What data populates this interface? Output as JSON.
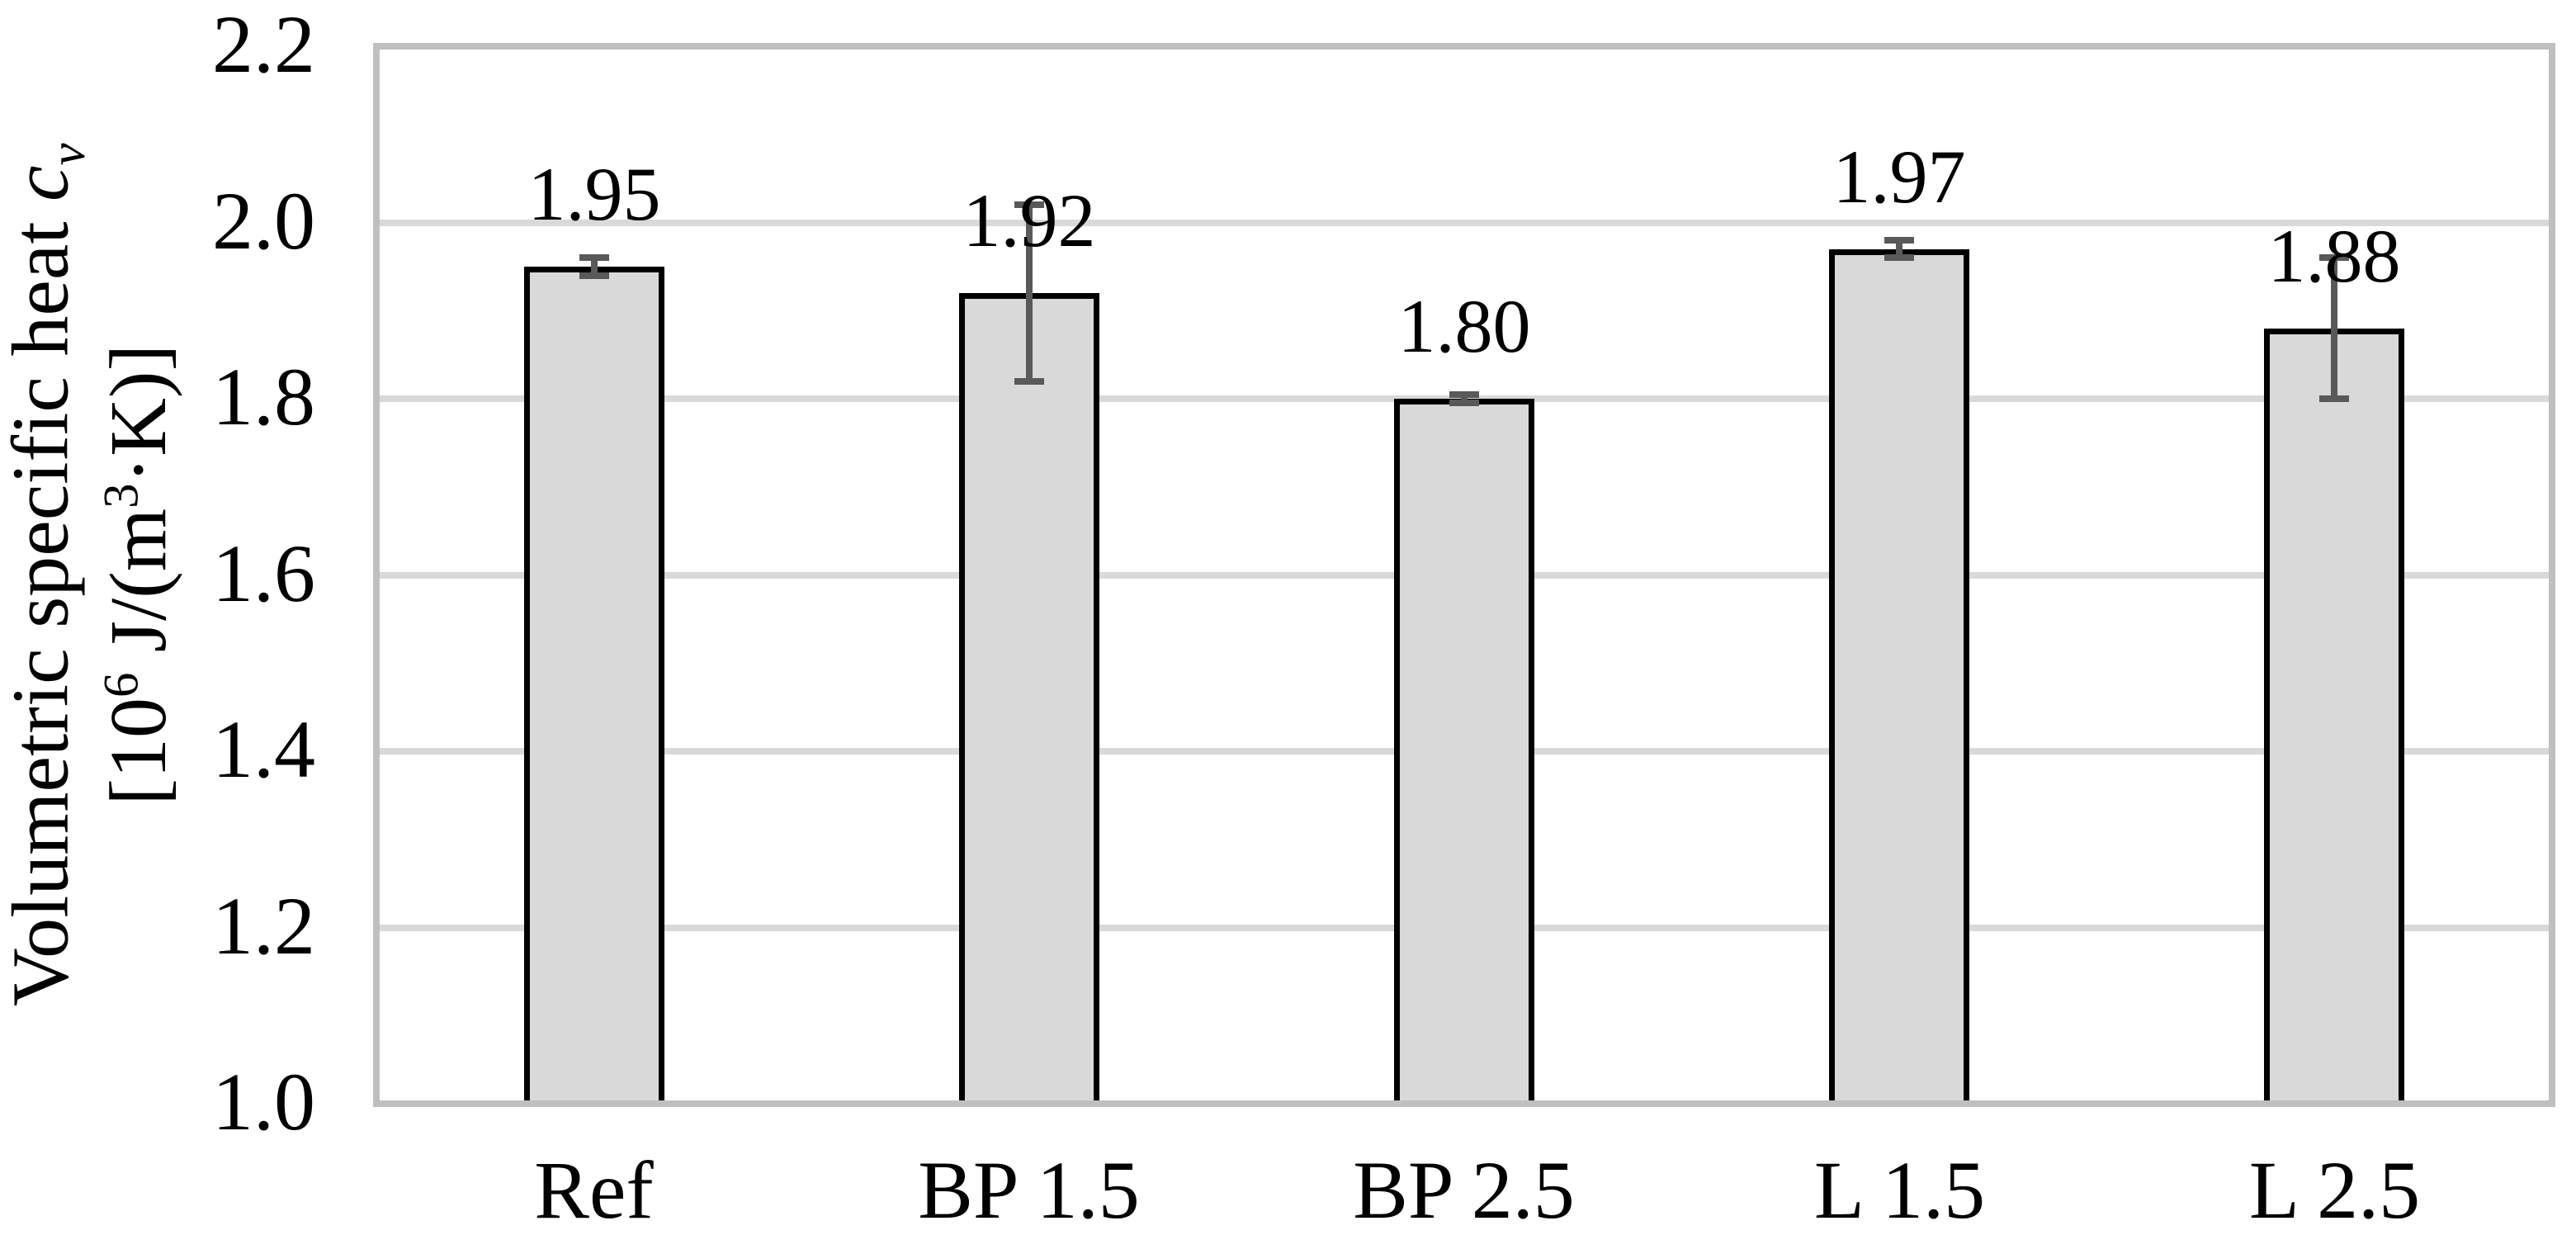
{
  "chart_data": {
    "type": "bar",
    "categories": [
      "Ref",
      "BP 1.5",
      "BP 2.5",
      "L 1.5",
      "L 2.5"
    ],
    "values": [
      1.95,
      1.92,
      1.8,
      1.97,
      1.88
    ],
    "value_labels": [
      "1.95",
      "1.92",
      "1.80",
      "1.97",
      "1.88"
    ],
    "error_bars_plus_minus": [
      0.01,
      0.1,
      0.005,
      0.01,
      0.08
    ],
    "ylabel": "Volumetric specific heat cv [10^6 J/(m^3·K)]",
    "ylim": [
      1.0,
      2.2
    ],
    "ytick_step": 0.2,
    "ytick_labels": [
      "1.0",
      "1.2",
      "1.4",
      "1.6",
      "1.8",
      "2.0",
      "2.2"
    ],
    "grid": true,
    "legend_position": "none",
    "colors": {
      "bar_fill": "#d9d9d9",
      "bar_border": "#000000",
      "error_bar": "#595959",
      "gridline": "#d9d9d9",
      "plot_frame": "#bfbfbf",
      "text": "#000000",
      "background": "#ffffff"
    }
  },
  "y_title": {
    "line1_prefix": "Volumetric specific heat ",
    "line1_symbol": "c",
    "line1_subscript": "v",
    "line2_part1": "[10",
    "line2_sup1": "6",
    "line2_part2": " J/(m",
    "line2_sup2": "3",
    "line2_part3": "·K)]"
  }
}
